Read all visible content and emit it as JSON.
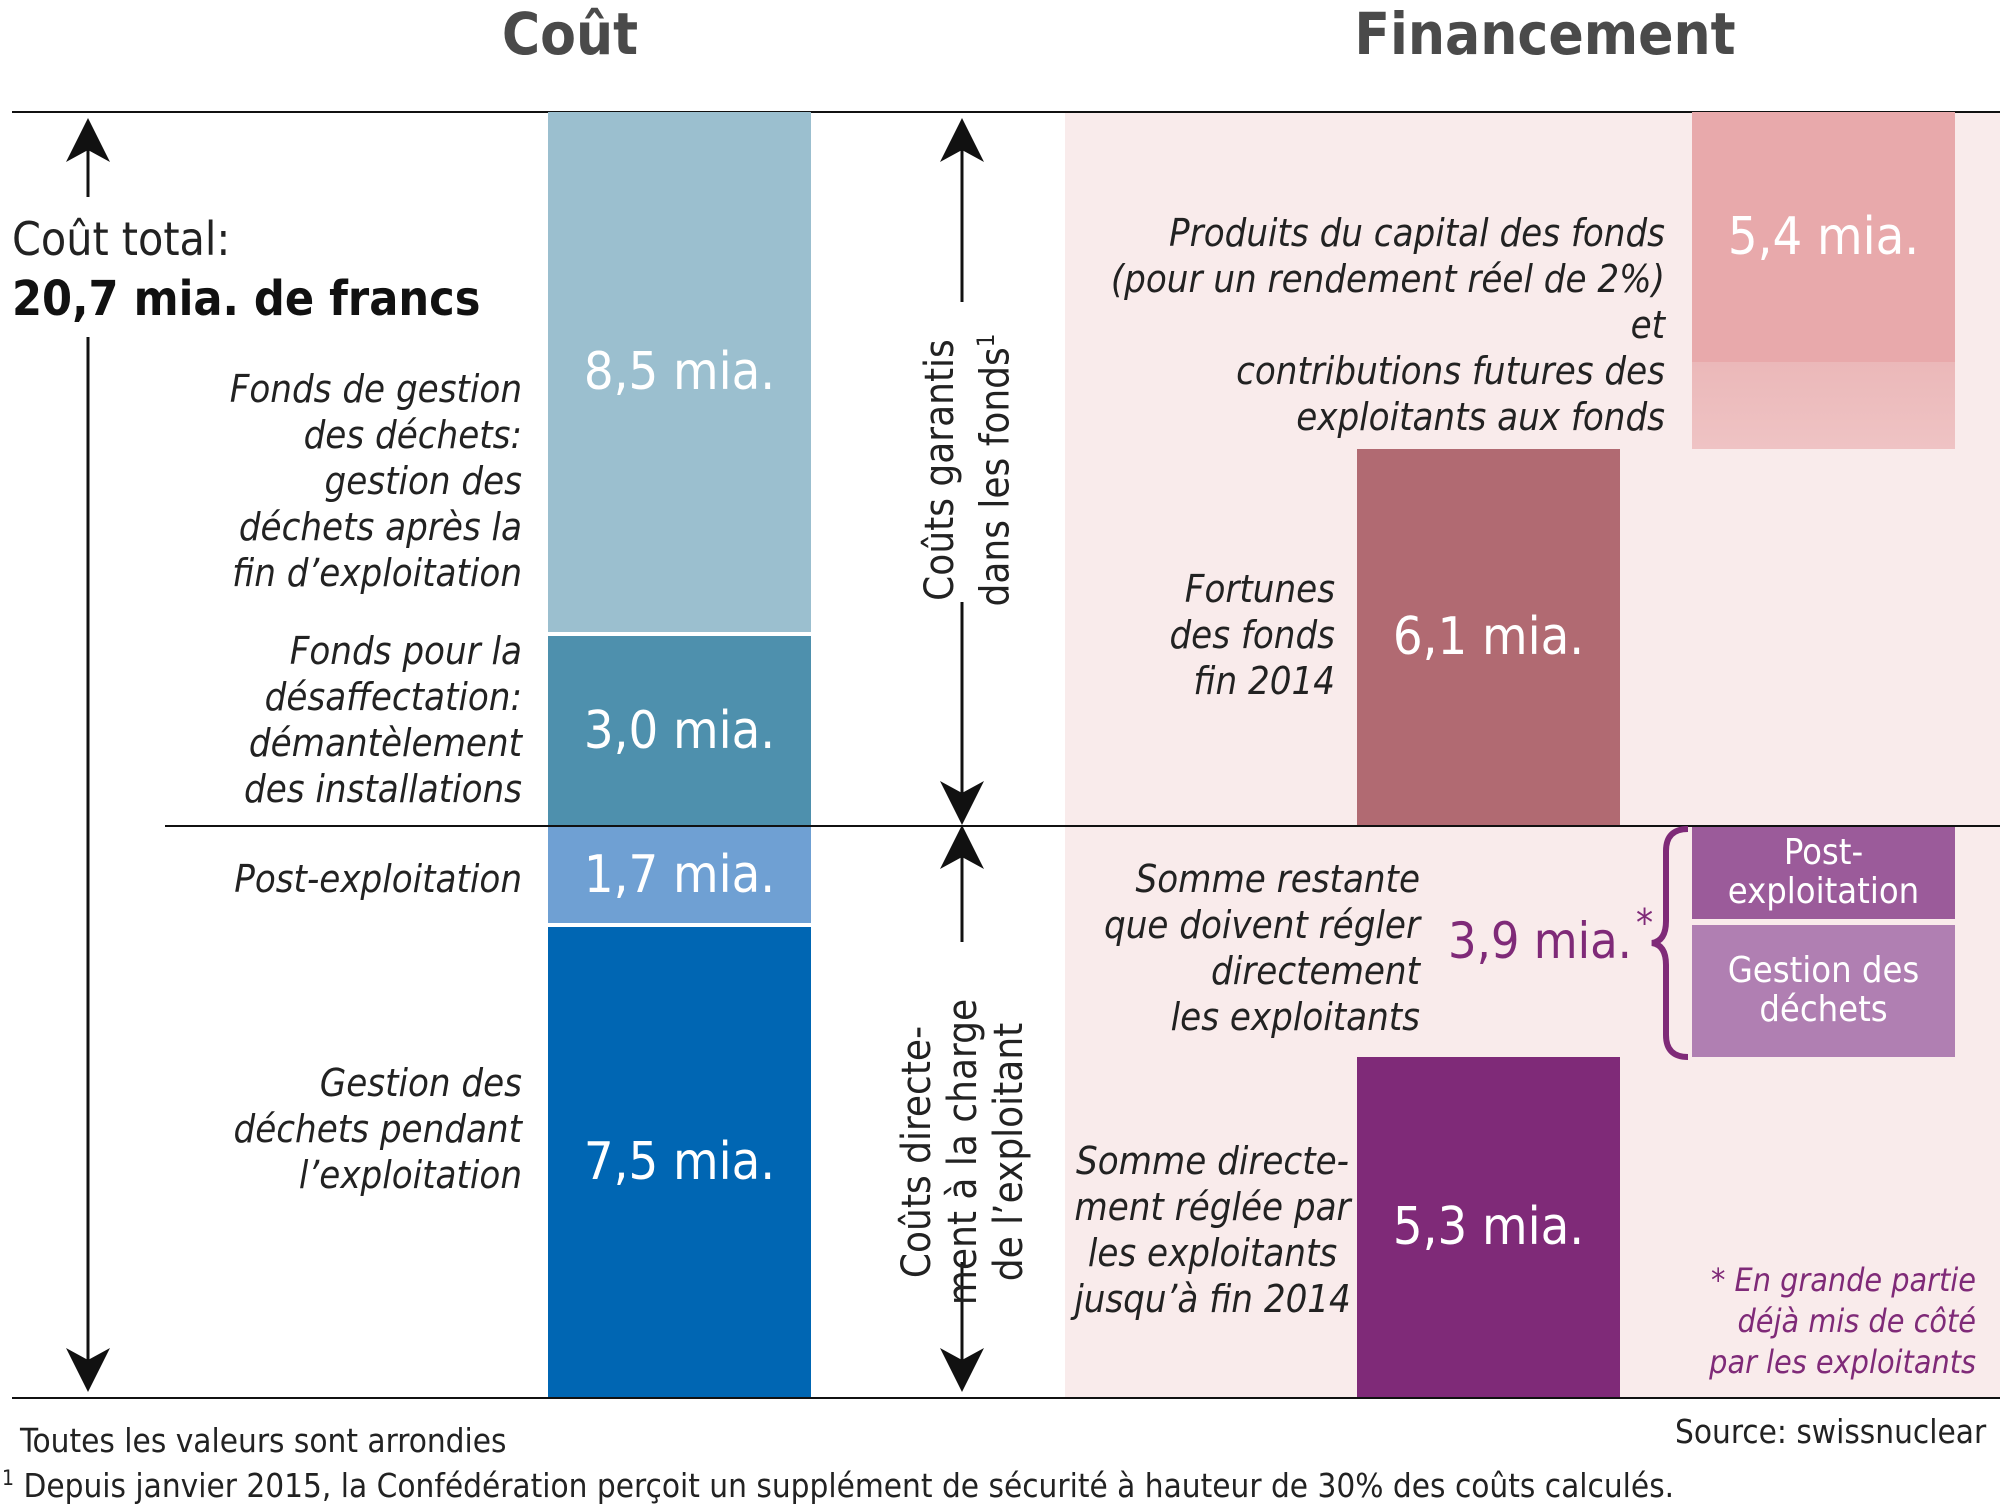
{
  "headers": {
    "cost": "Coût",
    "financing": "Financement"
  },
  "total": {
    "label": "Coût total:",
    "value": "20,7 mia. de francs"
  },
  "cost_items": [
    {
      "label": "Fonds de gestion\ndes déchets:\ngestion des\ndéchets après la\nfin d’exploitation",
      "value": "8,5 mia.",
      "color": "#9bbfcf"
    },
    {
      "label": "Fonds pour la\ndésaffectation:\ndémantèlement\ndes installations",
      "value": "3,0 mia.",
      "color": "#4e90ad"
    },
    {
      "label": "Post-exploitation",
      "value": "1,7 mia.",
      "color": "#6fa0d3"
    },
    {
      "label": "Gestion des\ndéchets pendant\nl’exploitation",
      "value": "7,5 mia.",
      "color": "#0066b3"
    }
  ],
  "vertical_labels": {
    "guaranteed": "Coûts garantis\ndans les fonds",
    "guaranteed_sup": "1",
    "direct": "Coûts directe-\nment à la charge\nde l’exploitant"
  },
  "financing": {
    "capital": {
      "label": "Produits du capital des fonds\n(pour un rendement réel de 2%)\net\ncontributions futures des\nexploitants aux fonds",
      "value": "5,4 mia.",
      "color": "#e8a9ab"
    },
    "fortunes": {
      "label": "Fortunes\ndes fonds\nfin 2014",
      "value": "6,1 mia.",
      "color": "#b16a72"
    },
    "remaining": {
      "label": "Somme restante\nque doivent régler\ndirectement\nles exploitants",
      "value": "3,9 mia.",
      "star": "*",
      "color": "#7f2a78"
    },
    "remaining_post": {
      "label": "Post-\nexploitation",
      "color": "#9b5b9a"
    },
    "remaining_waste": {
      "label": "Gestion des\ndéchets",
      "color": "#b07fb2"
    },
    "paid": {
      "label": "Somme directe-\nment réglée par\nles exploitants\njusqu’à fin 2014",
      "value": "5,3 mia.",
      "color": "#7f2a78"
    },
    "note": "* En grande partie\ndéjà mis de côté\npar les exploitants"
  },
  "footer": {
    "rounded": "Toutes les valeurs sont arrondies",
    "source": "Source:  swissnuclear",
    "footnote_mark": "1",
    "footnote": "Depuis janvier 2015, la Confédération perçoit un supplément de sécurité à hauteur de 30% des coûts calculés."
  },
  "colors": {
    "financing_bg": "#f9ebeb",
    "accent_purple": "#7f2a78"
  }
}
